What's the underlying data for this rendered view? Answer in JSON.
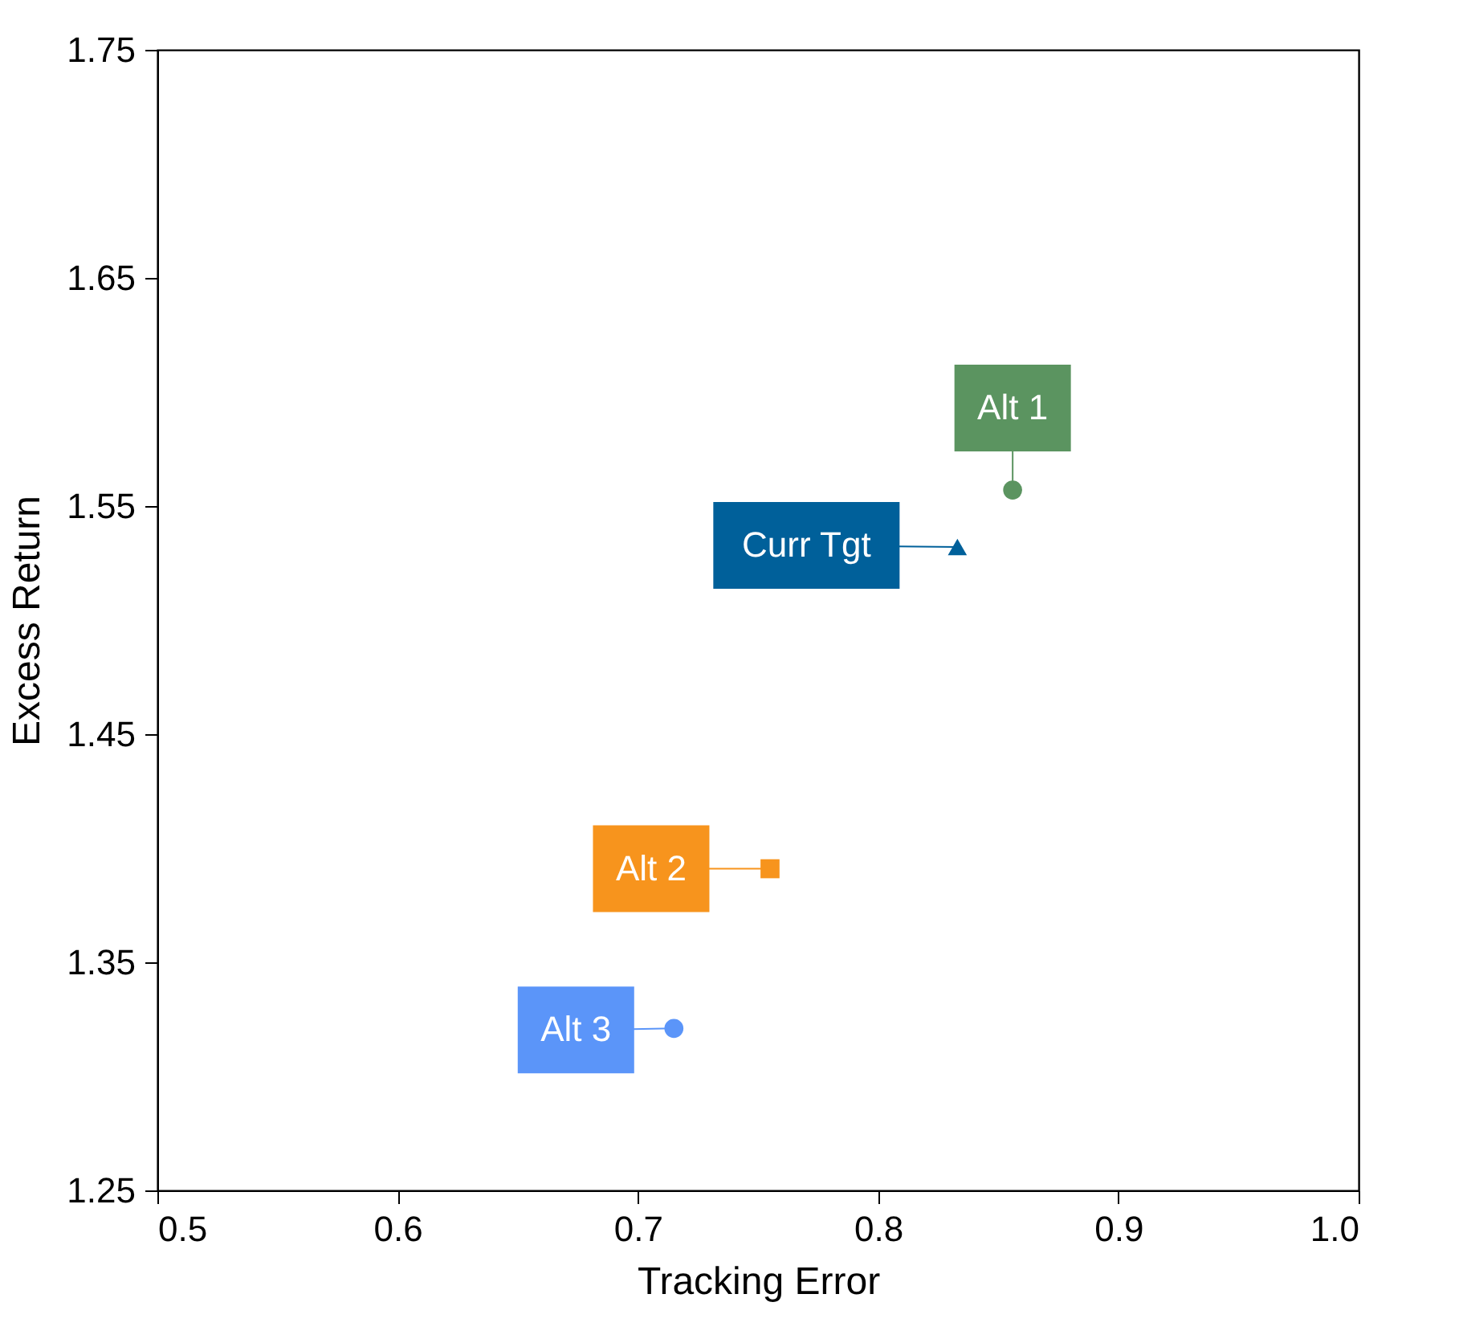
{
  "chart_data": {
    "type": "scatter",
    "xlabel": "Tracking Error",
    "ylabel": "Excess Return",
    "xlim": [
      0.5,
      1.0
    ],
    "ylim": [
      1.25,
      1.75
    ],
    "xticks": [
      0.5,
      0.6,
      0.7,
      0.8,
      0.9,
      {
        "value": 1,
        "label": "1.0"
      }
    ],
    "yticks": [
      1.25,
      1.35,
      1.45,
      1.55,
      1.65,
      1.75
    ],
    "grid": false,
    "series": [
      {
        "name": "Alt 1",
        "color": "#5b9460",
        "marker": "circle",
        "x": [
          0.856
        ],
        "values": [
          1.557
        ]
      },
      {
        "name": "Curr Tgt",
        "color": "#00609a",
        "marker": "triangle",
        "x": [
          0.833
        ],
        "values": [
          1.532
        ]
      },
      {
        "name": "Alt 2",
        "color": "#f7941d",
        "marker": "square",
        "x": [
          0.755
        ],
        "values": [
          1.391
        ]
      },
      {
        "name": "Alt 3",
        "color": "#5b95f9",
        "marker": "circle",
        "x": [
          0.715
        ],
        "values": [
          1.321
        ]
      }
    ]
  }
}
